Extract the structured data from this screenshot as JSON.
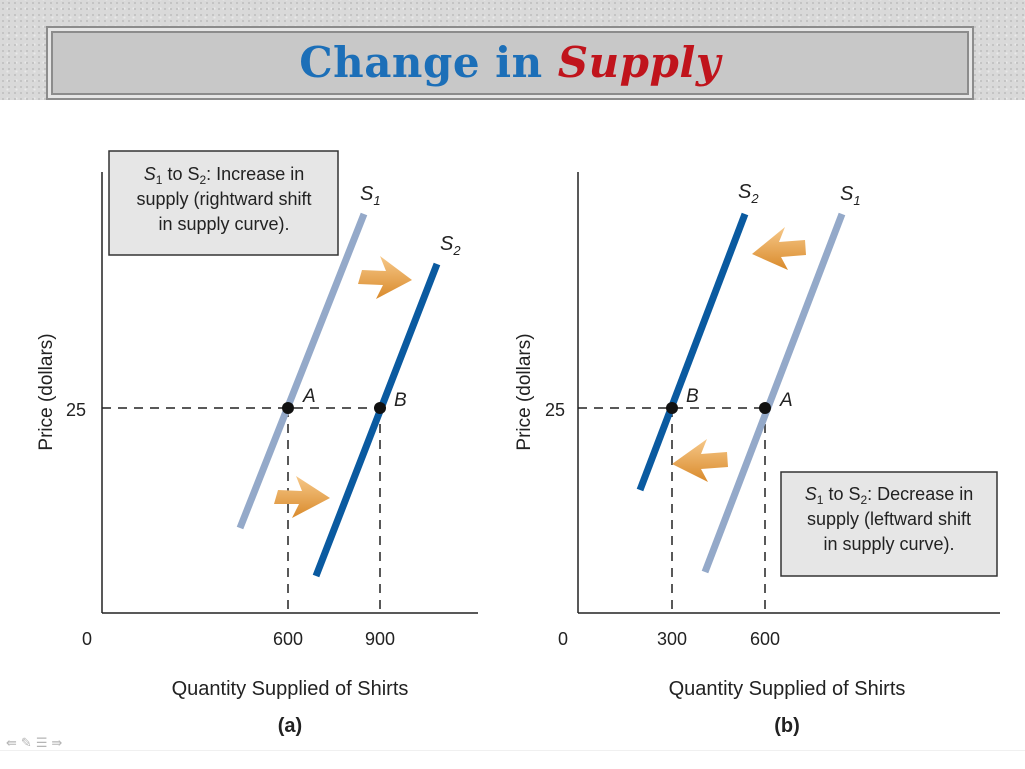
{
  "title": {
    "main": "Change in ",
    "accent": "Supply"
  },
  "panels": [
    {
      "id": "a",
      "caption": "(a)",
      "xlabel": "Quantity Supplied of Shirts",
      "ylabel": "Price (dollars)",
      "origin_label": "0",
      "y_tick": "25",
      "x_ticks": [
        "600",
        "900"
      ],
      "curves": [
        {
          "sym": "S",
          "sub": "1",
          "color": "#94a9c9"
        },
        {
          "sym": "S",
          "sub": "2",
          "color": "#0a5aa0"
        }
      ],
      "points": [
        "A",
        "B"
      ],
      "note": {
        "line1_pre": "S",
        "line1_sub1": "1",
        "line1_mid": " to S",
        "line1_sub2": "2",
        "line1_post": ": Increase in",
        "line2": "supply (rightward shift",
        "line3": "in supply curve)."
      }
    },
    {
      "id": "b",
      "caption": "(b)",
      "xlabel": "Quantity Supplied of Shirts",
      "ylabel": "Price (dollars)",
      "origin_label": "0",
      "y_tick": "25",
      "x_ticks": [
        "300",
        "600"
      ],
      "curves": [
        {
          "sym": "S",
          "sub": "2",
          "color": "#0a5aa0"
        },
        {
          "sym": "S",
          "sub": "1",
          "color": "#94a9c9"
        }
      ],
      "points": [
        "B",
        "A"
      ],
      "note": {
        "line1_pre": "S",
        "line1_sub1": "1",
        "line1_mid": " to S",
        "line1_sub2": "2",
        "line1_post": ": Decrease in",
        "line2": "supply (leftward shift",
        "line3": "in supply curve)."
      }
    }
  ],
  "colors": {
    "arrow": "#e8a449",
    "dashed": "#222222"
  },
  "nav_icons": [
    "prev-icon",
    "pen-icon",
    "menu-icon",
    "next-icon"
  ]
}
